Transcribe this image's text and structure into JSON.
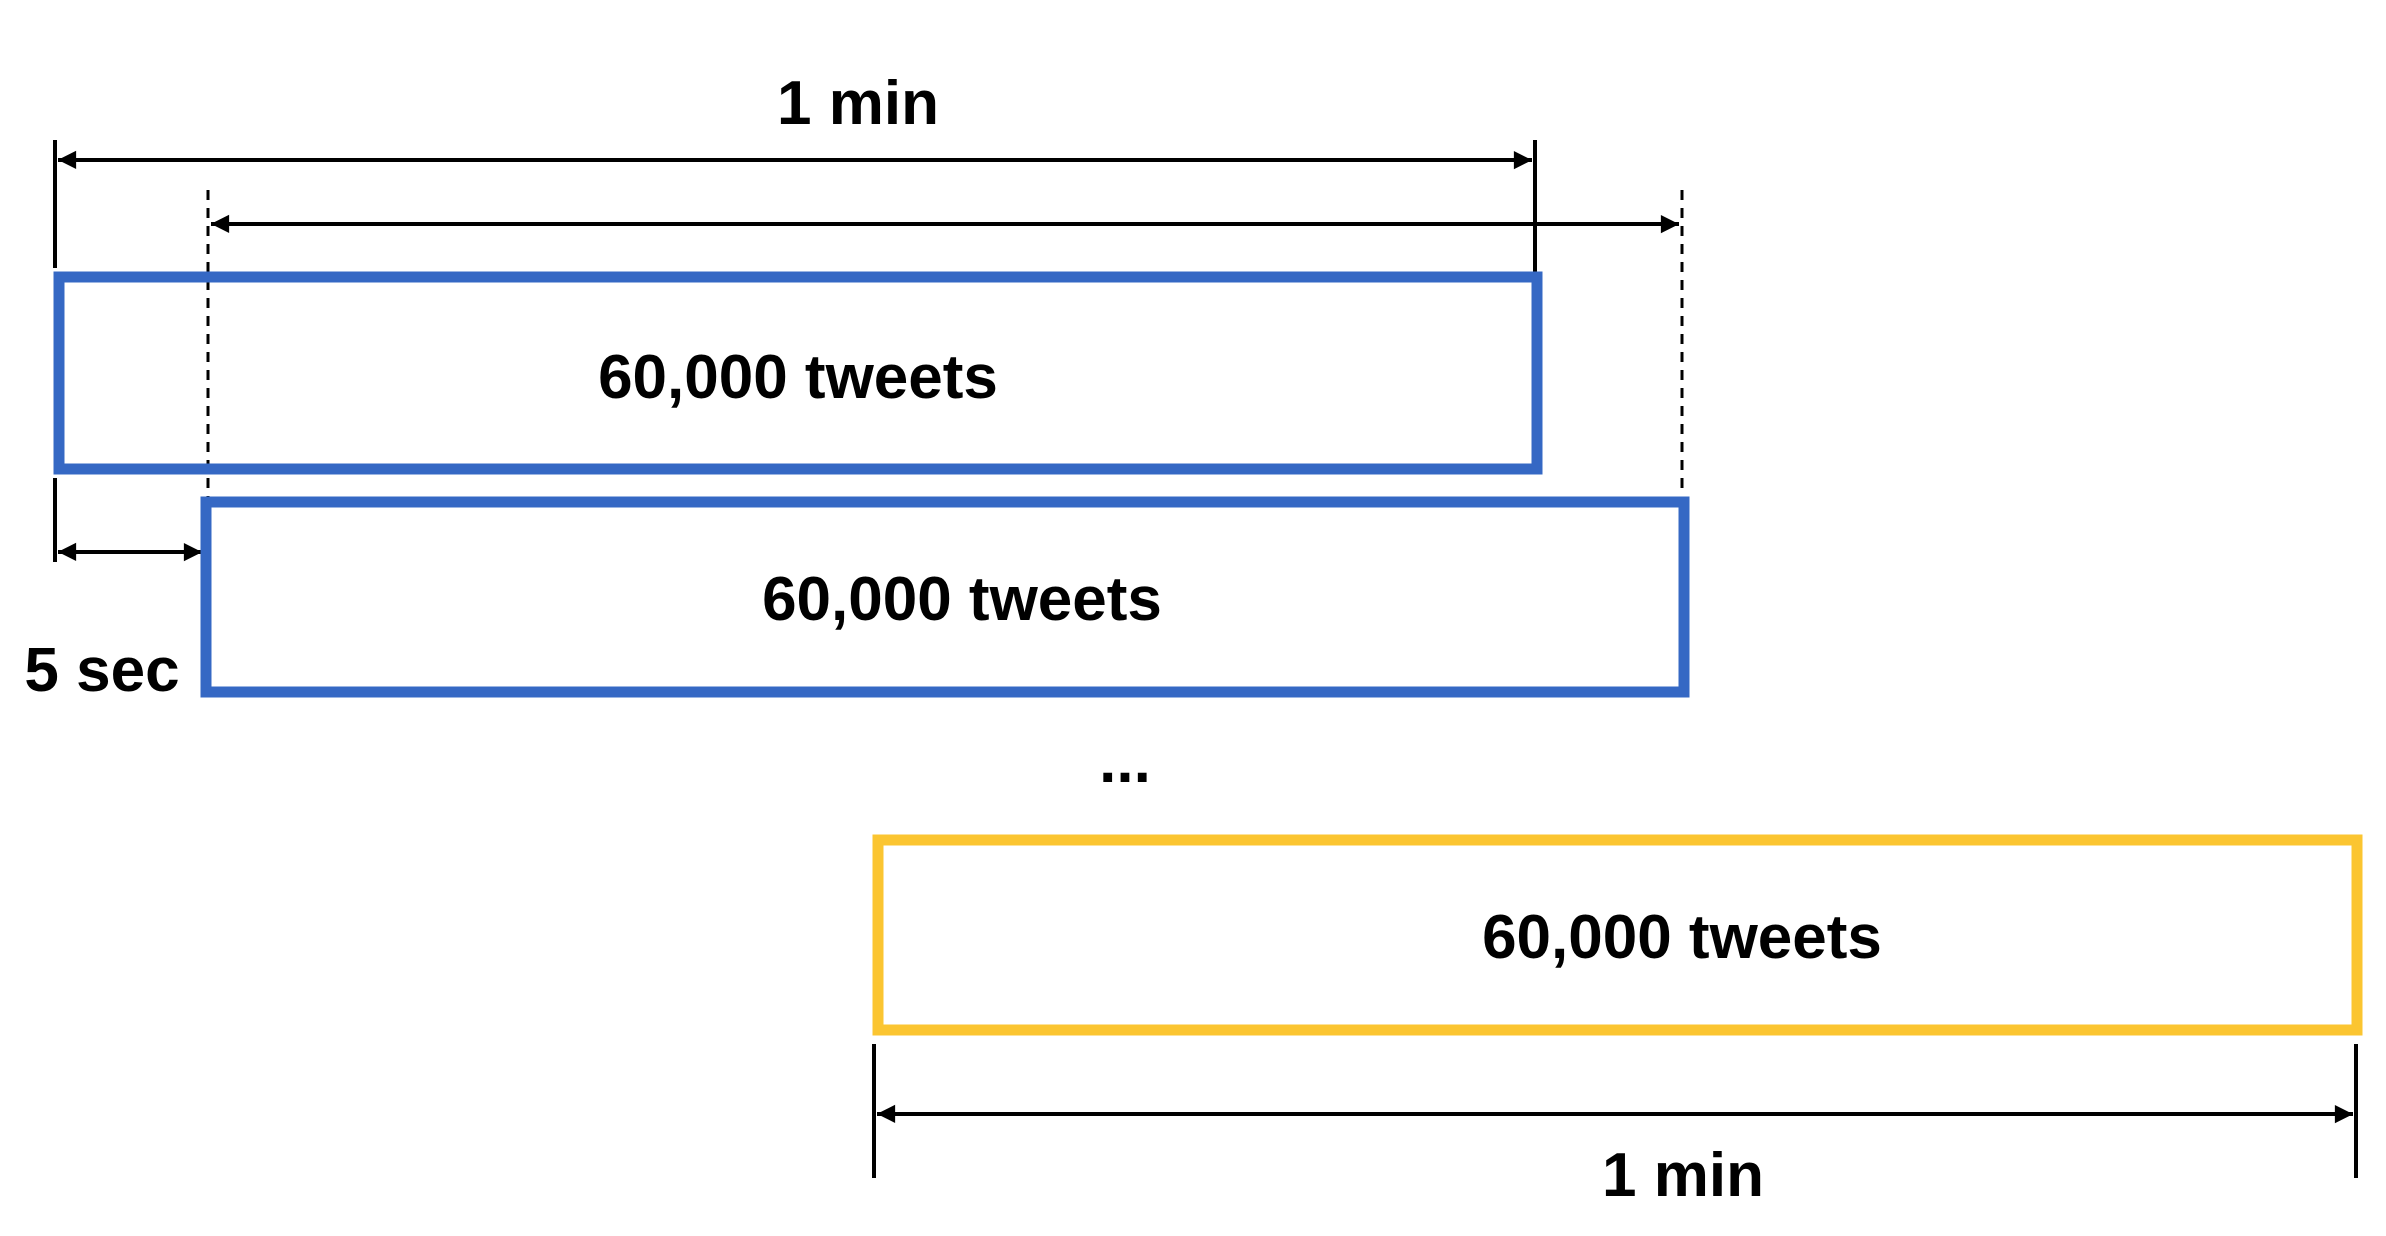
{
  "colors": {
    "window_blue": "#3568C4",
    "window_yellow": "#FBC531",
    "ink": "#000000",
    "background": "#FFFFFF"
  },
  "labels": {
    "top_duration": "1 min",
    "slide_step": "5 sec",
    "ellipsis": "...",
    "bottom_duration": "1 min"
  },
  "windows": [
    {
      "label": "60,000 tweets",
      "color": "blue"
    },
    {
      "label": "60,000 tweets",
      "color": "blue"
    },
    {
      "label": "60,000 tweets",
      "color": "yellow"
    }
  ]
}
